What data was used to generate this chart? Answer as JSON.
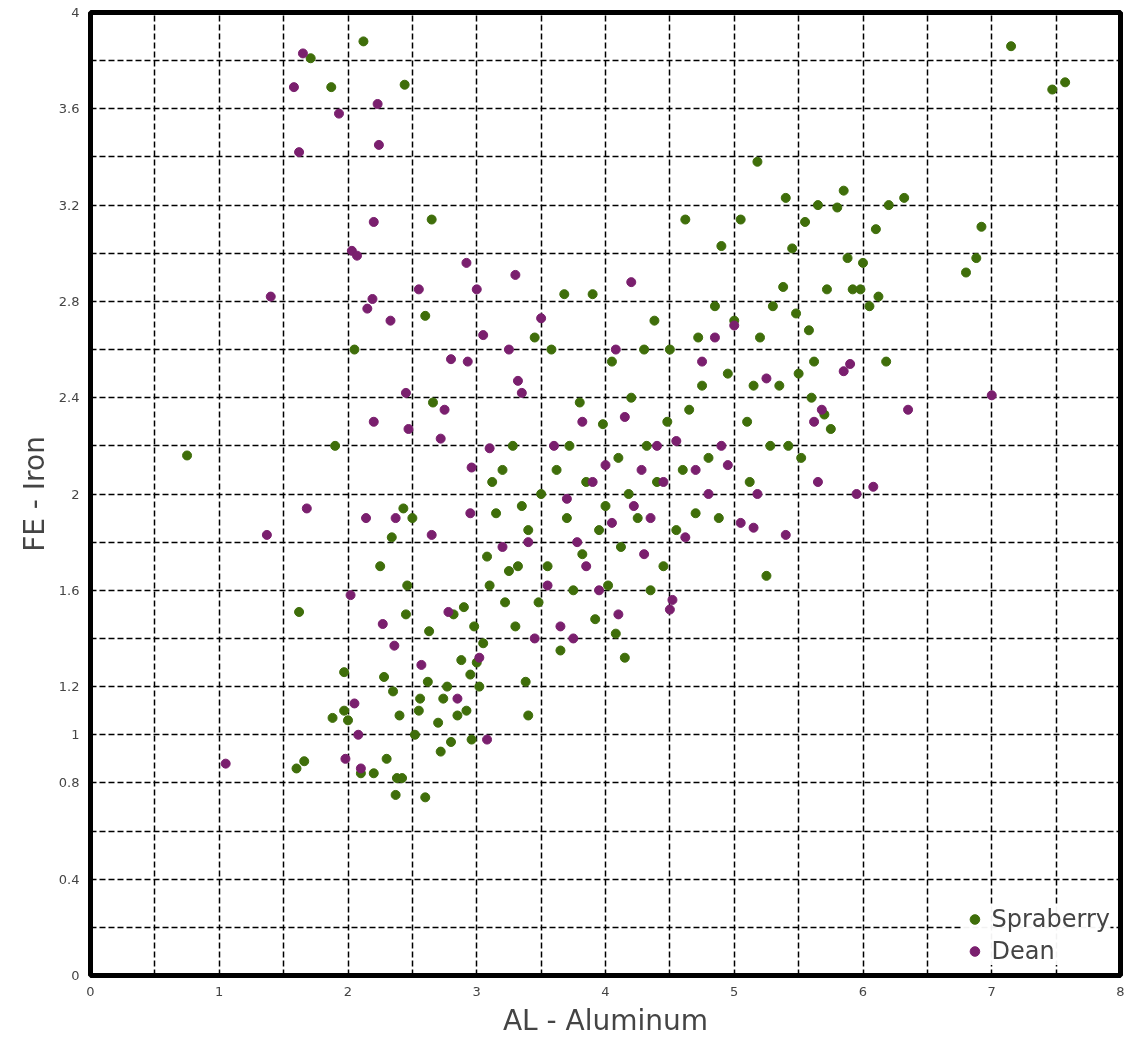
{
  "chart_data": {
    "type": "scatter",
    "xlabel": "AL - Aluminum",
    "ylabel": "FE - Iron",
    "xlim": [
      0,
      8
    ],
    "ylim": [
      0,
      4
    ],
    "xticks": [
      0,
      {
        "value": 0.5,
        "label": null
      },
      1,
      {
        "value": 1.5,
        "label": null
      },
      2,
      {
        "value": 2.5,
        "label": null
      },
      3,
      {
        "value": 3.5,
        "label": null
      },
      4,
      {
        "value": 4.5,
        "label": null
      },
      5,
      {
        "value": 5.5,
        "label": null
      },
      6,
      {
        "value": 6.5,
        "label": null
      },
      7,
      {
        "value": 7.5,
        "label": null
      },
      8
    ],
    "yticks": [
      0,
      {
        "value": 0.2,
        "label": null
      },
      0.4,
      {
        "value": 0.6,
        "label": null
      },
      0.8,
      {
        "value": 1.0,
        "label": "1"
      },
      1.2,
      {
        "value": 1.4,
        "label": null
      },
      1.6,
      {
        "value": 1.8,
        "label": null
      },
      2,
      {
        "value": 2.2,
        "label": null
      },
      2.4,
      {
        "value": 2.6,
        "label": null
      },
      2.8,
      {
        "value": 3.0,
        "label": null
      },
      3.2,
      {
        "value": 3.4,
        "label": null
      },
      3.6,
      {
        "value": 3.8,
        "label": null
      },
      4
    ],
    "grid": true,
    "legend": "bottom right",
    "marker": "circle",
    "series": [
      {
        "name": "Spraberry",
        "color": "#3f6e0a",
        "x": [
          0.75,
          1.6,
          1.66,
          1.62,
          1.71,
          1.87,
          1.88,
          1.9,
          1.97,
          2.0,
          1.97,
          2.05,
          2.12,
          2.1,
          2.2,
          2.25,
          2.28,
          2.3,
          2.34,
          2.35,
          2.37,
          2.38,
          2.4,
          2.42,
          2.43,
          2.45,
          2.46,
          2.5,
          2.44,
          2.52,
          2.55,
          2.56,
          2.6,
          2.6,
          2.62,
          2.63,
          2.65,
          2.66,
          2.7,
          2.72,
          2.74,
          2.77,
          2.8,
          2.82,
          2.85,
          2.88,
          2.9,
          2.92,
          2.95,
          2.96,
          2.98,
          3.0,
          3.02,
          3.05,
          3.08,
          3.1,
          3.12,
          3.15,
          3.2,
          3.22,
          3.25,
          3.28,
          3.3,
          3.32,
          3.35,
          3.38,
          3.4,
          3.4,
          3.45,
          3.48,
          3.5,
          3.55,
          3.58,
          3.62,
          3.65,
          3.68,
          3.7,
          3.72,
          3.75,
          3.8,
          3.82,
          3.85,
          3.9,
          3.92,
          3.95,
          3.98,
          4.0,
          4.02,
          4.05,
          4.08,
          4.1,
          4.12,
          4.15,
          4.18,
          4.2,
          4.25,
          4.3,
          4.32,
          4.35,
          4.38,
          4.4,
          4.45,
          4.48,
          4.5,
          4.55,
          4.6,
          4.62,
          4.65,
          4.7,
          4.72,
          4.75,
          4.8,
          4.85,
          4.88,
          4.9,
          4.95,
          5.0,
          5.05,
          5.1,
          5.12,
          5.15,
          5.18,
          5.2,
          5.25,
          5.28,
          5.3,
          5.35,
          5.38,
          5.4,
          5.42,
          5.45,
          5.48,
          5.5,
          5.52,
          5.55,
          5.58,
          5.6,
          5.62,
          5.65,
          5.7,
          5.72,
          5.75,
          5.8,
          5.85,
          5.88,
          5.92,
          5.98,
          6.0,
          6.05,
          6.1,
          6.12,
          6.18,
          6.2,
          6.32,
          6.8,
          6.88,
          6.92,
          7.15,
          7.47,
          7.57
        ],
        "values": [
          2.16,
          0.86,
          0.89,
          1.51,
          3.81,
          3.69,
          1.07,
          2.2,
          1.26,
          1.06,
          1.1,
          2.6,
          3.88,
          0.84,
          0.84,
          1.7,
          1.24,
          0.9,
          1.82,
          1.18,
          0.75,
          0.82,
          1.08,
          0.82,
          1.94,
          1.5,
          1.62,
          1.9,
          3.7,
          1.0,
          1.1,
          1.15,
          2.74,
          0.74,
          1.22,
          1.43,
          3.14,
          2.38,
          1.05,
          0.93,
          1.15,
          1.2,
          0.97,
          1.5,
          1.08,
          1.31,
          1.53,
          1.1,
          1.25,
          0.98,
          1.45,
          1.3,
          1.2,
          1.38,
          1.74,
          1.62,
          2.05,
          1.92,
          2.1,
          1.55,
          1.68,
          2.2,
          1.45,
          1.7,
          1.95,
          1.22,
          1.08,
          1.85,
          2.65,
          1.55,
          2.0,
          1.7,
          2.6,
          2.1,
          1.35,
          2.83,
          1.9,
          2.2,
          1.6,
          2.38,
          1.75,
          2.05,
          2.83,
          1.48,
          1.85,
          2.29,
          1.95,
          1.62,
          2.55,
          1.42,
          2.15,
          1.78,
          1.32,
          2.0,
          2.4,
          1.9,
          2.6,
          2.2,
          1.6,
          2.72,
          2.05,
          1.7,
          2.3,
          2.6,
          1.85,
          2.1,
          3.14,
          2.35,
          1.92,
          2.65,
          2.45,
          2.15,
          2.78,
          1.9,
          3.03,
          2.5,
          2.72,
          3.14,
          2.3,
          2.05,
          2.45,
          3.38,
          2.65,
          1.66,
          2.2,
          2.78,
          2.45,
          2.86,
          3.23,
          2.2,
          3.02,
          2.75,
          2.5,
          2.15,
          3.13,
          2.68,
          2.4,
          2.55,
          3.2,
          2.33,
          2.85,
          2.27,
          3.19,
          3.26,
          2.98,
          2.85,
          2.85,
          2.96,
          2.78,
          3.1,
          2.82,
          2.55,
          3.2,
          3.23,
          2.92,
          2.98,
          3.11,
          3.86,
          3.68,
          3.71
        ]
      },
      {
        "name": "Dean",
        "color": "#7a1f6e",
        "x": [
          1.05,
          1.37,
          1.4,
          1.58,
          1.62,
          1.65,
          1.68,
          1.93,
          1.98,
          2.02,
          2.05,
          2.03,
          2.07,
          2.08,
          2.1,
          2.14,
          2.15,
          2.19,
          2.2,
          2.2,
          2.23,
          2.24,
          2.27,
          2.33,
          2.36,
          2.37,
          2.45,
          2.47,
          2.55,
          2.57,
          2.65,
          2.72,
          2.75,
          2.78,
          2.8,
          2.85,
          2.92,
          2.93,
          2.95,
          2.96,
          3.0,
          3.02,
          3.05,
          3.08,
          3.1,
          3.2,
          3.25,
          3.3,
          3.32,
          3.35,
          3.4,
          3.45,
          3.5,
          3.55,
          3.6,
          3.65,
          3.7,
          3.75,
          3.78,
          3.82,
          3.85,
          3.9,
          3.95,
          4.0,
          4.05,
          4.08,
          4.1,
          4.15,
          4.2,
          4.22,
          4.28,
          4.3,
          4.35,
          4.4,
          4.45,
          4.5,
          4.52,
          4.55,
          4.62,
          4.7,
          4.75,
          4.8,
          4.85,
          4.9,
          4.95,
          5.0,
          5.05,
          5.15,
          5.18,
          5.25,
          5.4,
          5.62,
          5.65,
          5.68,
          5.85,
          5.9,
          5.95,
          6.08,
          6.35,
          7.0
        ],
        "values": [
          0.88,
          1.83,
          2.82,
          3.69,
          3.42,
          3.83,
          1.94,
          3.58,
          0.9,
          1.58,
          1.13,
          3.01,
          2.99,
          1.0,
          0.86,
          1.9,
          2.77,
          2.81,
          2.3,
          3.13,
          3.62,
          3.45,
          1.46,
          2.72,
          1.37,
          1.9,
          2.42,
          2.27,
          2.85,
          1.29,
          1.83,
          2.23,
          2.35,
          1.51,
          2.56,
          1.15,
          2.96,
          2.55,
          1.92,
          2.11,
          2.85,
          1.32,
          2.66,
          0.98,
          2.19,
          1.78,
          2.6,
          2.91,
          2.47,
          2.42,
          1.8,
          1.4,
          2.73,
          1.62,
          2.2,
          1.45,
          1.98,
          1.4,
          1.8,
          2.3,
          1.7,
          2.05,
          1.6,
          2.12,
          1.88,
          2.6,
          1.5,
          2.32,
          2.88,
          1.95,
          2.1,
          1.75,
          1.9,
          2.2,
          2.05,
          1.52,
          1.56,
          2.22,
          1.82,
          2.1,
          2.55,
          2.0,
          2.65,
          2.2,
          2.12,
          2.7,
          1.88,
          1.86,
          2.0,
          2.48,
          1.83,
          2.3,
          2.05,
          2.35,
          2.51,
          2.54,
          2.0,
          2.03,
          2.35,
          2.41
        ]
      }
    ]
  }
}
